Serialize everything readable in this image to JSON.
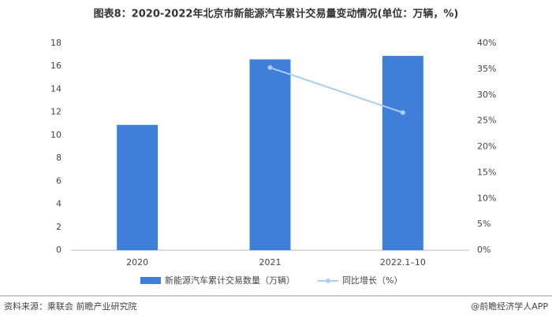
{
  "chart_data": {
    "type": "bar",
    "title": "图表8：2020-2022年北京市新能源汽车累计交易量变动情况(单位：万辆，%)",
    "categories": [
      "2020",
      "2021",
      "2022.1–10"
    ],
    "series": [
      {
        "name": "新能源汽车累计交易数量（万辆）",
        "type": "bar",
        "color": "#3f7fd9",
        "values": [
          10.9,
          16.6,
          16.9
        ]
      },
      {
        "name": "同比增长（%）",
        "type": "line",
        "color": "#a9cdf3",
        "axis": "y2",
        "values": [
          null,
          35.3,
          26.6
        ]
      }
    ],
    "ylim": [
      0,
      18
    ],
    "yticks": [
      0,
      2,
      4,
      6,
      8,
      10,
      12,
      14,
      16,
      18
    ],
    "y2lim": [
      0,
      40
    ],
    "y2ticks": [
      {
        "value": 0,
        "label": "0%"
      },
      {
        "value": 5,
        "label": "5%"
      },
      {
        "value": 10,
        "label": "10%"
      },
      {
        "value": 15,
        "label": "15%"
      },
      {
        "value": 20,
        "label": "20%"
      },
      {
        "value": 25,
        "label": "25%"
      },
      {
        "value": 30,
        "label": "30%"
      },
      {
        "value": 35,
        "label": "35%"
      },
      {
        "value": 40,
        "label": "40%"
      }
    ],
    "source": "资料来源：乘联会 前瞻产业研究院",
    "credit": "@前瞻经济学人APP"
  }
}
